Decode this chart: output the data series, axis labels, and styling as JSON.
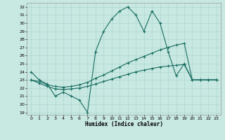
{
  "xlabel": "Humidex (Indice chaleur)",
  "xlim": [
    -0.5,
    23.5
  ],
  "ylim": [
    18.7,
    32.5
  ],
  "yticks": [
    19,
    20,
    21,
    22,
    23,
    24,
    25,
    26,
    27,
    28,
    29,
    30,
    31,
    32
  ],
  "xticks": [
    0,
    1,
    2,
    3,
    4,
    5,
    6,
    7,
    8,
    9,
    10,
    11,
    12,
    13,
    14,
    15,
    16,
    17,
    18,
    19,
    20,
    21,
    22,
    23
  ],
  "background_color": "#c8e8e2",
  "grid_color": "#a8d4cc",
  "line_color": "#1a6e62",
  "line1_x": [
    0,
    1,
    2,
    3,
    4,
    5,
    6,
    7,
    8,
    9,
    10,
    11,
    12,
    13,
    14,
    15,
    16,
    17,
    18,
    19,
    20,
    21,
    22,
    23
  ],
  "line1_y": [
    24.0,
    23.0,
    22.5,
    21.0,
    21.5,
    21.0,
    20.5,
    19.0,
    26.5,
    29.0,
    30.5,
    31.5,
    32.0,
    31.0,
    29.0,
    31.5,
    30.0,
    26.5,
    23.5,
    25.0,
    23.0,
    23.0,
    23.0,
    23.0
  ],
  "line2_x": [
    0,
    1,
    2,
    3,
    4,
    5,
    6,
    7,
    8,
    9,
    10,
    11,
    12,
    13,
    14,
    15,
    16,
    17,
    18,
    19,
    20,
    21,
    22,
    23
  ],
  "line2_y": [
    23.0,
    22.8,
    22.4,
    22.2,
    22.1,
    22.2,
    22.4,
    22.7,
    23.2,
    23.6,
    24.1,
    24.6,
    25.1,
    25.5,
    25.9,
    26.3,
    26.7,
    27.0,
    27.3,
    27.5,
    23.0,
    23.0,
    23.0,
    23.0
  ],
  "line3_x": [
    0,
    1,
    2,
    3,
    4,
    5,
    6,
    7,
    8,
    9,
    10,
    11,
    12,
    13,
    14,
    15,
    16,
    17,
    18,
    19,
    20,
    21,
    22,
    23
  ],
  "line3_y": [
    23.0,
    22.6,
    22.2,
    21.9,
    21.8,
    21.9,
    22.0,
    22.2,
    22.5,
    22.8,
    23.1,
    23.4,
    23.7,
    24.0,
    24.2,
    24.4,
    24.6,
    24.7,
    24.8,
    24.9,
    23.0,
    23.0,
    23.0,
    23.0
  ]
}
